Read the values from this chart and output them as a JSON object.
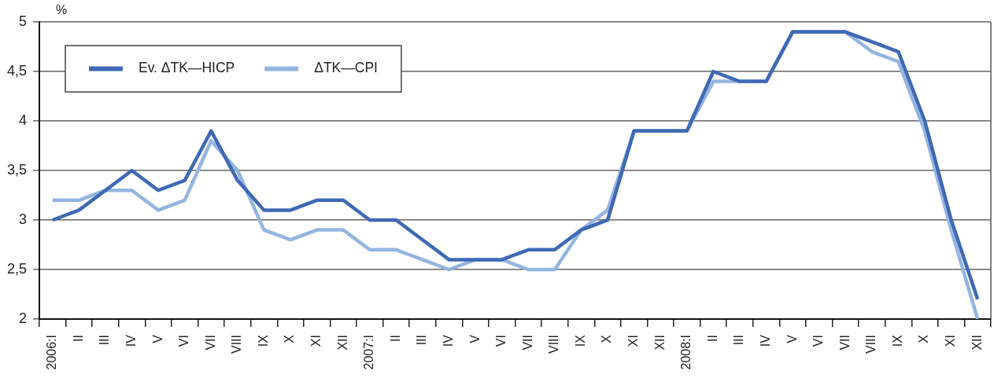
{
  "chart_data": {
    "type": "line",
    "ylabel": "%",
    "categories": [
      "2006:I",
      "II",
      "III",
      "IV",
      "V",
      "VI",
      "VII",
      "VIII",
      "IX",
      "X",
      "XI",
      "XII",
      "2007:I",
      "II",
      "III",
      "IV",
      "V",
      "VI",
      "VII",
      "VIII",
      "IX",
      "X",
      "XI",
      "XII",
      "2008:I",
      "II",
      "III",
      "IV",
      "V",
      "VI",
      "VII",
      "VIII",
      "IX",
      "X",
      "XI",
      "XII"
    ],
    "series": [
      {
        "name": "Ev. ΔTK—HICP",
        "color": "#3f69b5",
        "values": [
          3.0,
          3.1,
          3.3,
          3.5,
          3.3,
          3.4,
          3.9,
          3.4,
          3.1,
          3.1,
          3.2,
          3.2,
          3.0,
          3.0,
          2.8,
          2.6,
          2.6,
          2.6,
          2.7,
          2.7,
          2.9,
          3.0,
          3.9,
          3.9,
          3.9,
          4.5,
          4.4,
          4.4,
          4.9,
          4.9,
          4.9,
          4.8,
          4.7,
          4.0,
          3.0,
          2.2
        ]
      },
      {
        "name": "ΔTK—CPI",
        "color": "#94b5e0",
        "values": [
          3.2,
          3.2,
          3.3,
          3.3,
          3.1,
          3.2,
          3.8,
          3.5,
          2.9,
          2.8,
          2.9,
          2.9,
          2.7,
          2.7,
          2.6,
          2.5,
          2.6,
          2.6,
          2.5,
          2.5,
          2.9,
          3.1,
          3.9,
          3.9,
          3.9,
          4.4,
          4.4,
          4.4,
          4.9,
          4.9,
          4.9,
          4.7,
          4.6,
          3.9,
          2.9,
          2.0
        ]
      }
    ],
    "ylim": [
      2,
      5
    ],
    "yticks": [
      2,
      {
        "value": 2.5,
        "label": "2,5"
      },
      3,
      {
        "value": 3.5,
        "label": "3,5"
      },
      4,
      {
        "value": 4.5,
        "label": "4,5"
      },
      5
    ],
    "grid": "y",
    "legend": "top left"
  }
}
